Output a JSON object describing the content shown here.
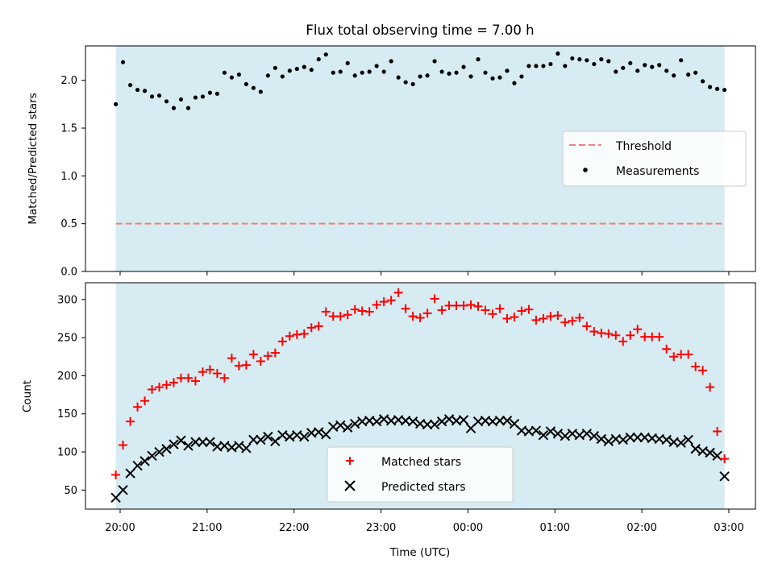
{
  "title": "Flux total observing time = 7.00 h",
  "x_axis": {
    "label": "Time (UTC)",
    "ticks": [
      {
        "h": 0,
        "label": "20:00"
      },
      {
        "h": 1,
        "label": "21:00"
      },
      {
        "h": 2,
        "label": "22:00"
      },
      {
        "h": 3,
        "label": "23:00"
      },
      {
        "h": 4,
        "label": "00:00"
      },
      {
        "h": 5,
        "label": "01:00"
      },
      {
        "h": 6,
        "label": "02:00"
      },
      {
        "h": 7,
        "label": "03:00"
      }
    ]
  },
  "chart_data": [
    {
      "type": "scatter",
      "panel": "top",
      "ylabel": "Matched/Predicted stars",
      "ylim": [
        0,
        2.36
      ],
      "yticks": [
        "0.0",
        "0.5",
        "1.0",
        "1.5",
        "2.0"
      ],
      "shaded_span": {
        "x": [
          "19:57",
          "02:57"
        ],
        "color": "#add8e6"
      },
      "threshold": {
        "name": "Threshold",
        "value": 0.5,
        "x": [
          "19:57",
          "02:57"
        ],
        "color": "#f08080"
      },
      "legend_location": "center-right",
      "legend": [
        "Threshold",
        "Measurements"
      ],
      "series": [
        {
          "name": "Measurements",
          "color": "#000000",
          "marker": "dot",
          "x": [
            "19:57",
            "20:02",
            "20:07",
            "20:12",
            "20:17",
            "20:22",
            "20:27",
            "20:32",
            "20:37",
            "20:42",
            "20:47",
            "20:52",
            "20:57",
            "21:02",
            "21:07",
            "21:12",
            "21:17",
            "21:22",
            "21:27",
            "21:32",
            "21:37",
            "21:42",
            "21:47",
            "21:52",
            "21:57",
            "22:02",
            "22:07",
            "22:12",
            "22:17",
            "22:22",
            "22:27",
            "22:32",
            "22:37",
            "22:42",
            "22:47",
            "22:52",
            "22:57",
            "23:02",
            "23:07",
            "23:12",
            "23:17",
            "23:22",
            "23:27",
            "23:32",
            "23:37",
            "23:42",
            "23:47",
            "23:52",
            "23:57",
            "00:02",
            "00:07",
            "00:12",
            "00:17",
            "00:22",
            "00:27",
            "00:32",
            "00:37",
            "00:42",
            "00:47",
            "00:52",
            "00:57",
            "01:02",
            "01:07",
            "01:12",
            "01:17",
            "01:22",
            "01:27",
            "01:32",
            "01:37",
            "01:42",
            "01:47",
            "01:52",
            "01:57",
            "02:02",
            "02:07",
            "02:12",
            "02:17",
            "02:22",
            "02:27",
            "02:32",
            "02:37",
            "02:42",
            "02:47",
            "02:52",
            "02:57"
          ],
          "y": [
            1.75,
            2.19,
            1.95,
            1.9,
            1.89,
            1.83,
            1.84,
            1.78,
            1.71,
            1.8,
            1.71,
            1.82,
            1.83,
            1.87,
            1.86,
            2.08,
            2.03,
            2.06,
            1.96,
            1.92,
            1.88,
            2.05,
            2.13,
            2.04,
            2.1,
            2.12,
            2.14,
            2.11,
            2.22,
            2.27,
            2.08,
            2.09,
            2.18,
            2.05,
            2.08,
            2.09,
            2.15,
            2.09,
            2.2,
            2.03,
            1.98,
            1.96,
            2.04,
            2.05,
            2.2,
            2.09,
            2.07,
            2.08,
            2.14,
            2.04,
            2.22,
            2.08,
            2.02,
            2.03,
            2.1,
            1.97,
            2.04,
            2.15,
            2.15,
            2.15,
            2.17,
            2.28,
            2.15,
            2.23,
            2.22,
            2.21,
            2.17,
            2.22,
            2.2,
            2.09,
            2.13,
            2.18,
            2.1,
            2.16,
            2.14,
            2.16,
            2.1,
            2.05,
            2.21,
            2.06,
            2.08,
            1.99,
            1.93,
            1.91,
            1.9
          ]
        }
      ]
    },
    {
      "type": "scatter",
      "panel": "bottom",
      "ylabel": "Count",
      "ylim": [
        25,
        322
      ],
      "yticks": [
        "50",
        "100",
        "150",
        "200",
        "250",
        "300"
      ],
      "shaded_span": {
        "x": [
          "19:57",
          "02:57"
        ],
        "color": "#add8e6"
      },
      "xlabel": "Time (UTC)",
      "legend_location": "lower-center",
      "legend": [
        "Matched stars",
        "Predicted stars"
      ],
      "series": [
        {
          "name": "Matched stars",
          "color": "#ff0000",
          "marker": "plus",
          "x": [
            "19:57",
            "20:02",
            "20:07",
            "20:12",
            "20:17",
            "20:22",
            "20:27",
            "20:32",
            "20:37",
            "20:42",
            "20:47",
            "20:52",
            "20:57",
            "21:02",
            "21:07",
            "21:12",
            "21:17",
            "21:22",
            "21:27",
            "21:32",
            "21:37",
            "21:42",
            "21:47",
            "21:52",
            "21:57",
            "22:02",
            "22:07",
            "22:12",
            "22:17",
            "22:22",
            "22:27",
            "22:32",
            "22:37",
            "22:42",
            "22:47",
            "22:52",
            "22:57",
            "23:02",
            "23:07",
            "23:12",
            "23:17",
            "23:22",
            "23:27",
            "23:32",
            "23:37",
            "23:42",
            "23:47",
            "23:52",
            "23:57",
            "00:02",
            "00:07",
            "00:12",
            "00:17",
            "00:22",
            "00:27",
            "00:32",
            "00:37",
            "00:42",
            "00:47",
            "00:52",
            "00:57",
            "01:02",
            "01:07",
            "01:12",
            "01:17",
            "01:22",
            "01:27",
            "01:32",
            "01:37",
            "01:42",
            "01:47",
            "01:52",
            "01:57",
            "02:02",
            "02:07",
            "02:12",
            "02:17",
            "02:22",
            "02:27",
            "02:32",
            "02:37",
            "02:42",
            "02:47",
            "02:52",
            "02:57"
          ],
          "y": [
            70,
            109,
            140,
            159,
            167,
            182,
            185,
            188,
            191,
            197,
            197,
            193,
            205,
            208,
            203,
            197,
            223,
            213,
            214,
            228,
            219,
            226,
            230,
            245,
            252,
            254,
            255,
            263,
            265,
            284,
            278,
            278,
            280,
            287,
            285,
            284,
            293,
            297,
            299,
            309,
            288,
            278,
            276,
            282,
            301,
            286,
            292,
            292,
            292,
            293,
            291,
            286,
            281,
            288,
            275,
            277,
            285,
            287,
            273,
            275,
            278,
            279,
            270,
            272,
            276,
            265,
            258,
            256,
            255,
            253,
            245,
            253,
            261,
            251,
            251,
            251,
            235,
            225,
            228,
            228,
            212,
            207,
            185,
            127,
            91
          ]
        },
        {
          "name": "Predicted stars",
          "color": "#000000",
          "marker": "x",
          "x": [
            "19:57",
            "20:02",
            "20:07",
            "20:12",
            "20:17",
            "20:22",
            "20:27",
            "20:32",
            "20:37",
            "20:42",
            "20:47",
            "20:52",
            "20:57",
            "21:02",
            "21:07",
            "21:12",
            "21:17",
            "21:22",
            "21:27",
            "21:32",
            "21:37",
            "21:42",
            "21:47",
            "21:52",
            "21:57",
            "22:02",
            "22:07",
            "22:12",
            "22:17",
            "22:22",
            "22:27",
            "22:32",
            "22:37",
            "22:42",
            "22:47",
            "22:52",
            "22:57",
            "23:02",
            "23:07",
            "23:12",
            "23:17",
            "23:22",
            "23:27",
            "23:32",
            "23:37",
            "23:42",
            "23:47",
            "23:52",
            "23:57",
            "00:02",
            "00:07",
            "00:12",
            "00:17",
            "00:22",
            "00:27",
            "00:32",
            "00:37",
            "00:42",
            "00:47",
            "00:52",
            "00:57",
            "01:02",
            "01:07",
            "01:12",
            "01:17",
            "01:22",
            "01:27",
            "01:32",
            "01:37",
            "01:42",
            "01:47",
            "01:52",
            "01:57",
            "02:02",
            "02:07",
            "02:12",
            "02:17",
            "02:22",
            "02:27",
            "02:32",
            "02:37",
            "02:42",
            "02:47",
            "02:52",
            "02:57"
          ],
          "y": [
            40,
            50,
            72,
            82,
            88,
            95,
            100,
            104,
            110,
            115,
            108,
            113,
            113,
            113,
            107,
            108,
            106,
            108,
            105,
            116,
            116,
            120,
            114,
            122,
            120,
            122,
            120,
            125,
            126,
            123,
            133,
            135,
            132,
            137,
            140,
            141,
            140,
            143,
            141,
            142,
            141,
            140,
            137,
            136,
            136,
            140,
            143,
            141,
            142,
            131,
            140,
            141,
            140,
            141,
            141,
            137,
            128,
            127,
            128,
            122,
            127,
            124,
            121,
            124,
            122,
            124,
            121,
            117,
            114,
            117,
            116,
            119,
            119,
            119,
            118,
            117,
            116,
            113,
            112,
            116,
            104,
            101,
            99,
            95,
            68
          ]
        }
      ]
    }
  ]
}
